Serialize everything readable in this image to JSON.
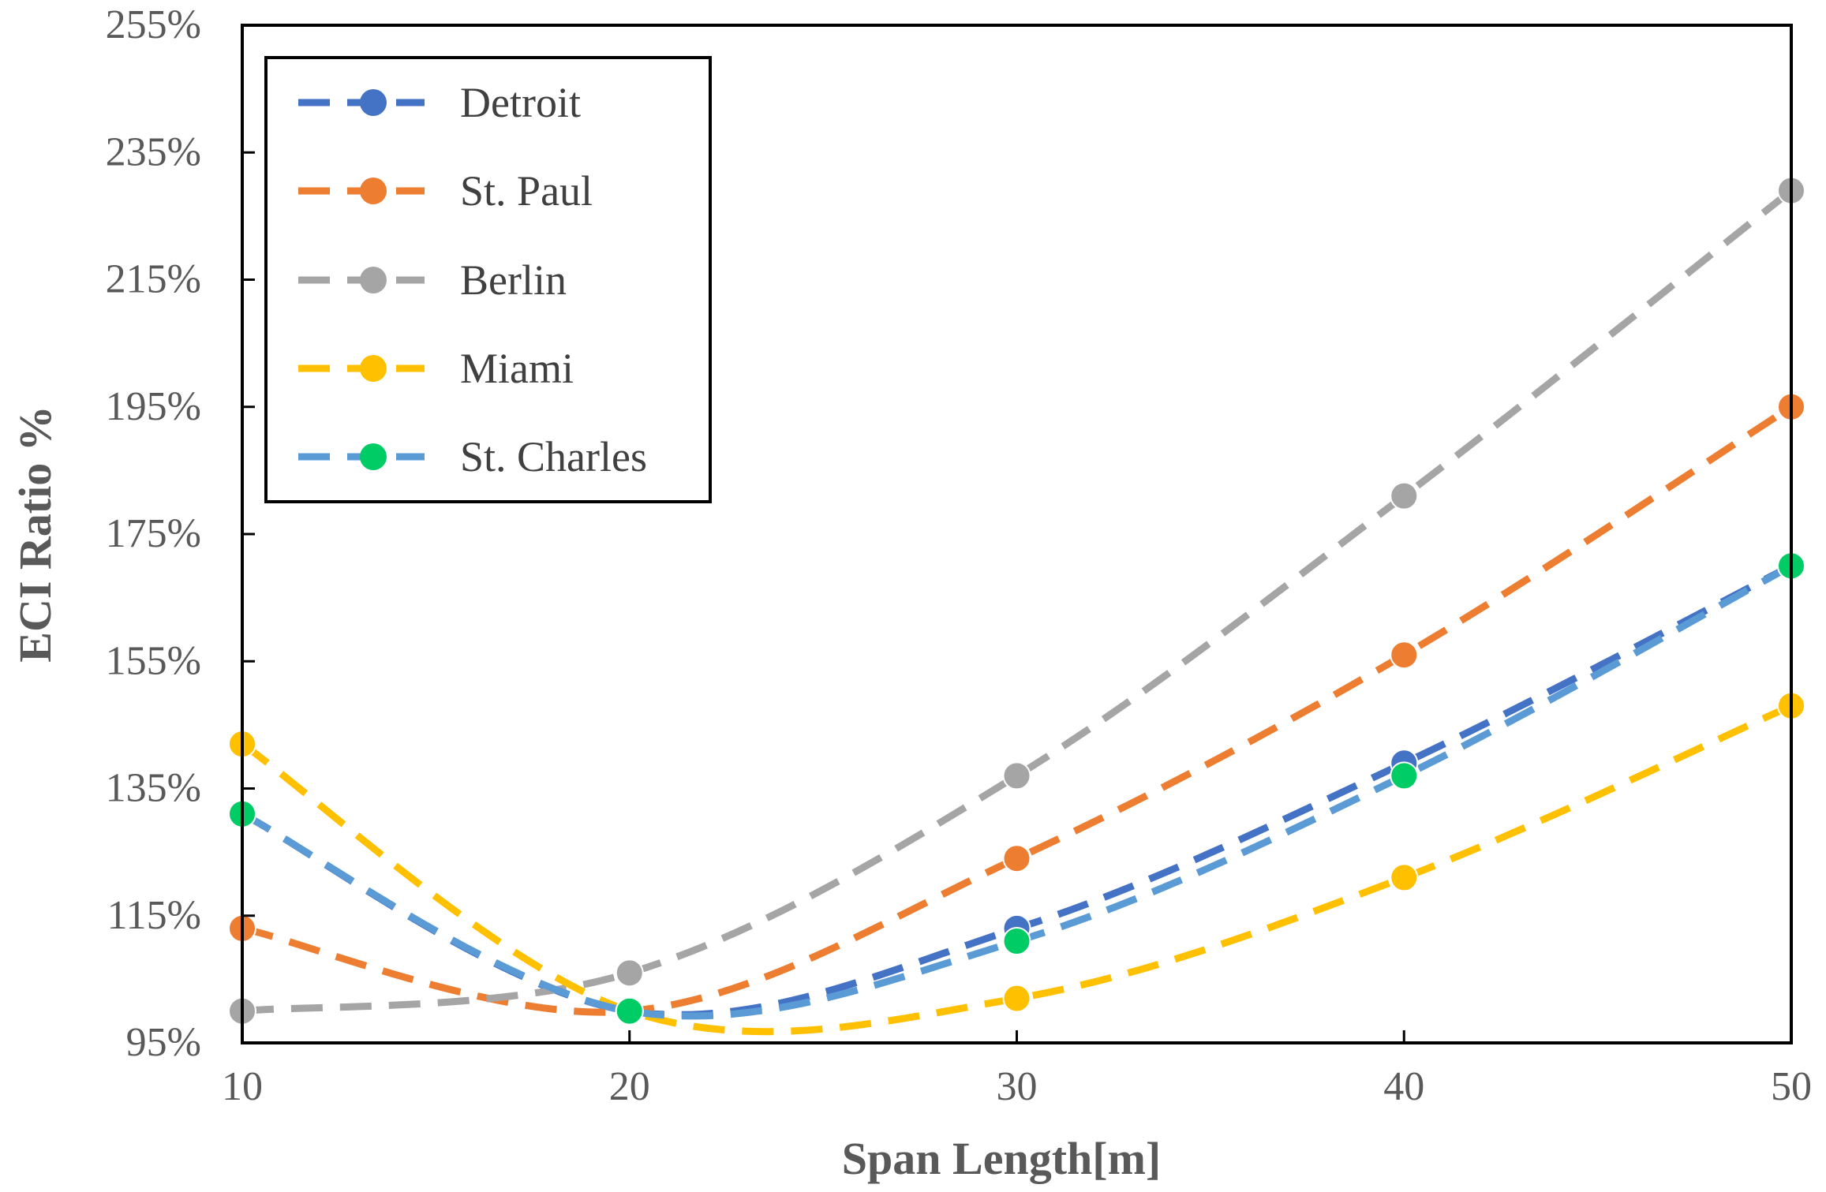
{
  "chart_data": {
    "type": "line",
    "title": "",
    "xlabel": "Span Length[m]",
    "ylabel": "ECI Ratio %",
    "x": [
      10,
      20,
      30,
      40,
      50
    ],
    "xlim": [
      10,
      50
    ],
    "ylim": [
      95,
      255
    ],
    "xticks": [
      "10",
      "20",
      "30",
      "40",
      "50"
    ],
    "yticks": [
      "95%",
      "115%",
      "135%",
      "155%",
      "175%",
      "195%",
      "215%",
      "235%",
      "255%"
    ],
    "ytick_values": [
      95,
      115,
      135,
      155,
      175,
      195,
      215,
      235,
      255
    ],
    "legend_position": "top-left",
    "grid": false,
    "line_style": "dashed smoothed with circle markers",
    "series": [
      {
        "name": "Detroit",
        "color": "#4472C4",
        "values": [
          131,
          100,
          113,
          139,
          170
        ]
      },
      {
        "name": "St. Paul",
        "color": "#ED7D31",
        "values": [
          113,
          100,
          124,
          156,
          195
        ]
      },
      {
        "name": "Berlin",
        "color": "#A5A5A5",
        "values": [
          100,
          106,
          137,
          181,
          229
        ]
      },
      {
        "name": "Miami",
        "color": "#FFC000",
        "values": [
          142,
          100,
          102,
          121,
          148
        ]
      },
      {
        "name": "St. Charles",
        "color": "#5B9BD5",
        "marker_color": "#00CC66",
        "values": [
          131,
          100,
          111,
          137,
          170
        ]
      }
    ]
  }
}
